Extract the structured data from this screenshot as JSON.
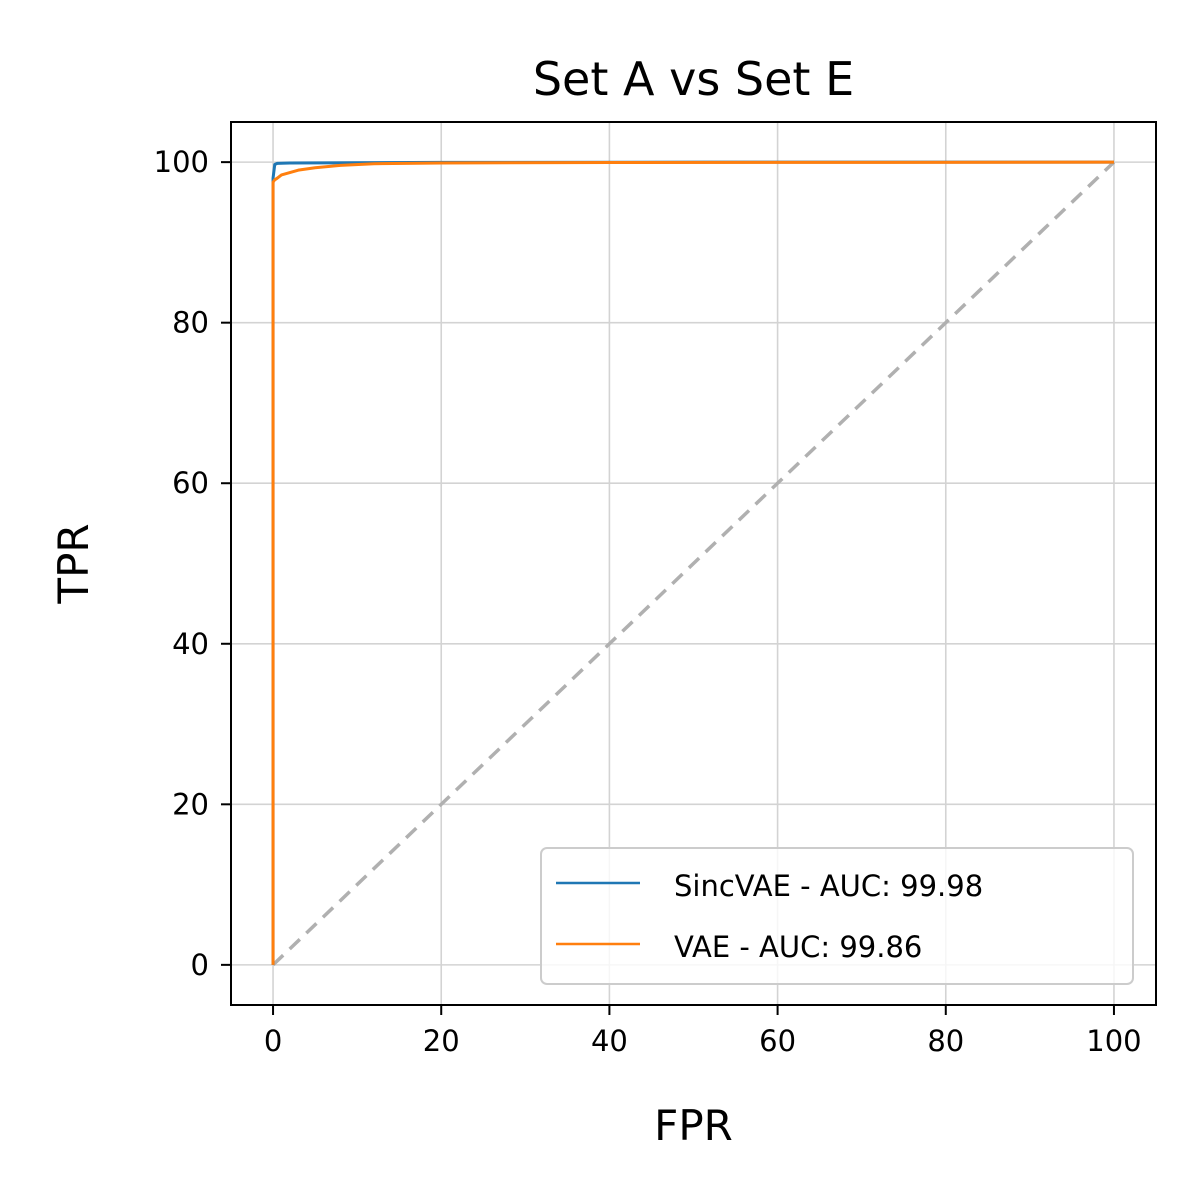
{
  "chart_data": {
    "type": "line",
    "title": "Set A vs Set E",
    "xlabel": "FPR",
    "ylabel": "TPR",
    "xlim": [
      -5,
      105
    ],
    "ylim": [
      -5,
      105
    ],
    "xticks": [
      0,
      20,
      40,
      60,
      80,
      100
    ],
    "yticks": [
      0,
      20,
      40,
      60,
      80,
      100
    ],
    "grid": true,
    "legend_position": "bottom-right",
    "series": [
      {
        "name": "SincVAE - AUC: 99.98",
        "color": "#1f77b4",
        "line_style": "solid",
        "points": [
          [
            0,
            0
          ],
          [
            0,
            98
          ],
          [
            0.2,
            99.7
          ],
          [
            0.5,
            99.85
          ],
          [
            2,
            99.9
          ],
          [
            20,
            99.97
          ],
          [
            52,
            100
          ],
          [
            64,
            100
          ],
          [
            100,
            100
          ]
        ]
      },
      {
        "name": "VAE - AUC: 99.86",
        "color": "#ff7f0e",
        "line_style": "solid",
        "points": [
          [
            0,
            0
          ],
          [
            0,
            97.5
          ],
          [
            0.2,
            97.8
          ],
          [
            0.5,
            98.0
          ],
          [
            1,
            98.4
          ],
          [
            2,
            98.7
          ],
          [
            3,
            99.0
          ],
          [
            5,
            99.3
          ],
          [
            8,
            99.6
          ],
          [
            12,
            99.8
          ],
          [
            20,
            99.9
          ],
          [
            40,
            99.95
          ],
          [
            100,
            100
          ]
        ]
      },
      {
        "name": "",
        "color": "#b0b0b0",
        "line_style": "dashed",
        "points": [
          [
            0,
            0
          ],
          [
            100,
            100
          ]
        ]
      }
    ]
  }
}
